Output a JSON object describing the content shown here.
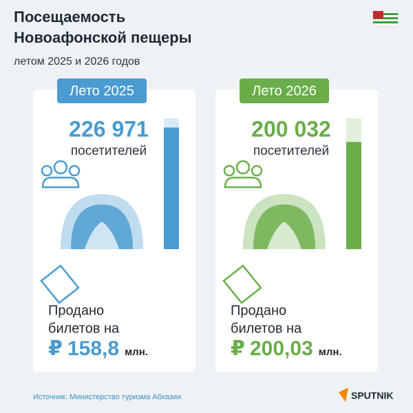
{
  "header": {
    "title_lines": [
      "Посещаемость",
      "Новоафонской пещеры"
    ],
    "subtitle": "летом 2025 и 2026 годов"
  },
  "cards": [
    {
      "label": "Лето 2025",
      "color": "#4a9bd0",
      "visitors": {
        "value": 226971,
        "label": "226 971"
      },
      "visitors_unit": "посетителей",
      "sales_lines": [
        "Продано",
        "билетов на"
      ],
      "currency": "₽",
      "amount": "158,8",
      "amount_unit": "млн."
    },
    {
      "label": "Лето 2026",
      "color": "#6aae4a",
      "visitors": {
        "value": 200032,
        "label": "200 032"
      },
      "visitors_unit": "посетителей",
      "sales_lines": [
        "Продано",
        "билетов на"
      ],
      "currency": "₽",
      "amount": "200,03",
      "amount_unit": "млн."
    }
  ],
  "footer": {
    "source": "Источник: Министерство туризма Абхазии",
    "brand": "SPUTNIK"
  }
}
